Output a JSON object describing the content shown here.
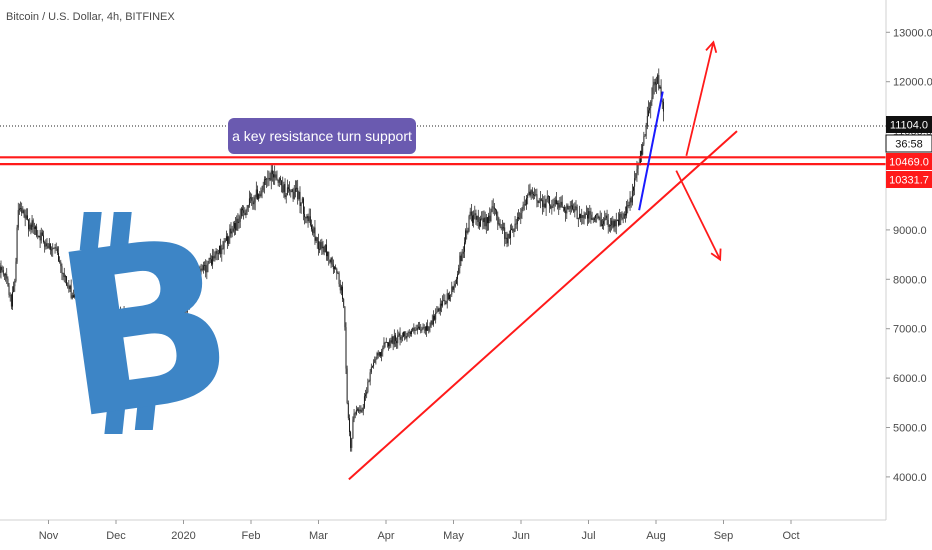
{
  "header": {
    "title": "Bitcoin / U.S. Dollar, 4h, BITFINEX"
  },
  "colors": {
    "candles": "#111111",
    "resistance_lines": "#ff1a1a",
    "trendline": "#ff1a1a",
    "arrows": "#ff1a1a",
    "recent_trend": "#1a1aff",
    "annotation_bg": "#6a5ab0",
    "logo": "#3d85c6",
    "axis_text": "#4a4a4a"
  },
  "logo": {
    "icon": "bitcoin-logo-icon",
    "letter": "B"
  },
  "annotation": {
    "text": "a key resistance turn support"
  },
  "price_tags": {
    "last_price": "11104.0",
    "countdown": "36:58",
    "upper_level": "10469.0",
    "lower_level": "10331.7"
  },
  "chart_data": {
    "type": "candlestick",
    "title": "Bitcoin / U.S. Dollar, 4h, BITFINEX",
    "xlabel": "",
    "ylabel": "",
    "ylim": [
      3000,
      14000
    ],
    "y_ticks": [
      {
        "value": 13000,
        "label": "13000.0"
      },
      {
        "value": 12000,
        "label": "12000.0"
      },
      {
        "value": 11000,
        "label": "11000.0"
      },
      {
        "value": 9000,
        "label": "9000.0"
      },
      {
        "value": 8000,
        "label": "8000.0"
      },
      {
        "value": 7000,
        "label": "7000.0"
      },
      {
        "value": 6000,
        "label": "6000.0"
      },
      {
        "value": 5000,
        "label": "5000.0"
      },
      {
        "value": 4000,
        "label": "4000.0"
      }
    ],
    "x_ticks": [
      {
        "month": 1,
        "label": "Nov"
      },
      {
        "month": 2,
        "label": "Dec"
      },
      {
        "month": 3,
        "label": "2020"
      },
      {
        "month": 4,
        "label": "Feb"
      },
      {
        "month": 5,
        "label": "Mar"
      },
      {
        "month": 6,
        "label": "Apr"
      },
      {
        "month": 7,
        "label": "May"
      },
      {
        "month": 8,
        "label": "Jun"
      },
      {
        "month": 9,
        "label": "Jul"
      },
      {
        "month": 10,
        "label": "Aug"
      },
      {
        "month": 11,
        "label": "Sep"
      },
      {
        "month": 12,
        "label": "Oct"
      }
    ],
    "price_path": [
      [
        -0.3,
        8800
      ],
      [
        -0.2,
        8650
      ],
      [
        0.0,
        8500
      ],
      [
        0.2,
        8300
      ],
      [
        0.35,
        8150
      ],
      [
        0.45,
        7500
      ],
      [
        0.5,
        7900
      ],
      [
        0.55,
        9400
      ],
      [
        0.7,
        9150
      ],
      [
        1.0,
        8700
      ],
      [
        1.1,
        8600
      ],
      [
        1.3,
        7800
      ],
      [
        1.5,
        7400
      ],
      [
        1.7,
        7100
      ],
      [
        2.0,
        7300
      ],
      [
        2.3,
        7200
      ],
      [
        2.5,
        7150
      ],
      [
        2.7,
        7300
      ],
      [
        3.0,
        7250
      ],
      [
        3.1,
        7700
      ],
      [
        3.3,
        8200
      ],
      [
        3.6,
        8700
      ],
      [
        3.9,
        9400
      ],
      [
        4.2,
        9900
      ],
      [
        4.35,
        10150
      ],
      [
        4.5,
        9800
      ],
      [
        4.7,
        9700
      ],
      [
        5.0,
        8700
      ],
      [
        5.1,
        8600
      ],
      [
        5.3,
        8000
      ],
      [
        5.38,
        7500
      ],
      [
        5.42,
        5500
      ],
      [
        5.48,
        4500
      ],
      [
        5.52,
        5300
      ],
      [
        5.65,
        5400
      ],
      [
        5.8,
        6300
      ],
      [
        6.0,
        6700
      ],
      [
        6.3,
        6900
      ],
      [
        6.6,
        7000
      ],
      [
        6.8,
        7400
      ],
      [
        7.0,
        7800
      ],
      [
        7.15,
        8700
      ],
      [
        7.25,
        9300
      ],
      [
        7.4,
        9100
      ],
      [
        7.6,
        9400
      ],
      [
        7.8,
        8800
      ],
      [
        8.0,
        9400
      ],
      [
        8.1,
        9700
      ],
      [
        8.3,
        9600
      ],
      [
        8.6,
        9500
      ],
      [
        8.9,
        9300
      ],
      [
        9.2,
        9200
      ],
      [
        9.4,
        9150
      ],
      [
        9.55,
        9300
      ],
      [
        9.65,
        9700
      ],
      [
        9.75,
        10400
      ],
      [
        9.85,
        11100
      ],
      [
        9.95,
        11900
      ],
      [
        10.05,
        12050
      ],
      [
        10.12,
        11100
      ]
    ],
    "annotations": {
      "resistance_levels": [
        10469.0,
        10331.7
      ],
      "trendline": {
        "from": [
          5.45,
          3950
        ],
        "to": [
          11.2,
          11000
        ]
      },
      "recent_trend_line": {
        "from": [
          9.75,
          9400
        ],
        "to": [
          10.1,
          11800
        ]
      },
      "arrow_up": {
        "from": [
          10.45,
          10500
        ],
        "to": [
          10.85,
          12800
        ]
      },
      "arrow_down": {
        "from": [
          10.3,
          10200
        ],
        "to": [
          10.95,
          8400
        ]
      }
    }
  }
}
